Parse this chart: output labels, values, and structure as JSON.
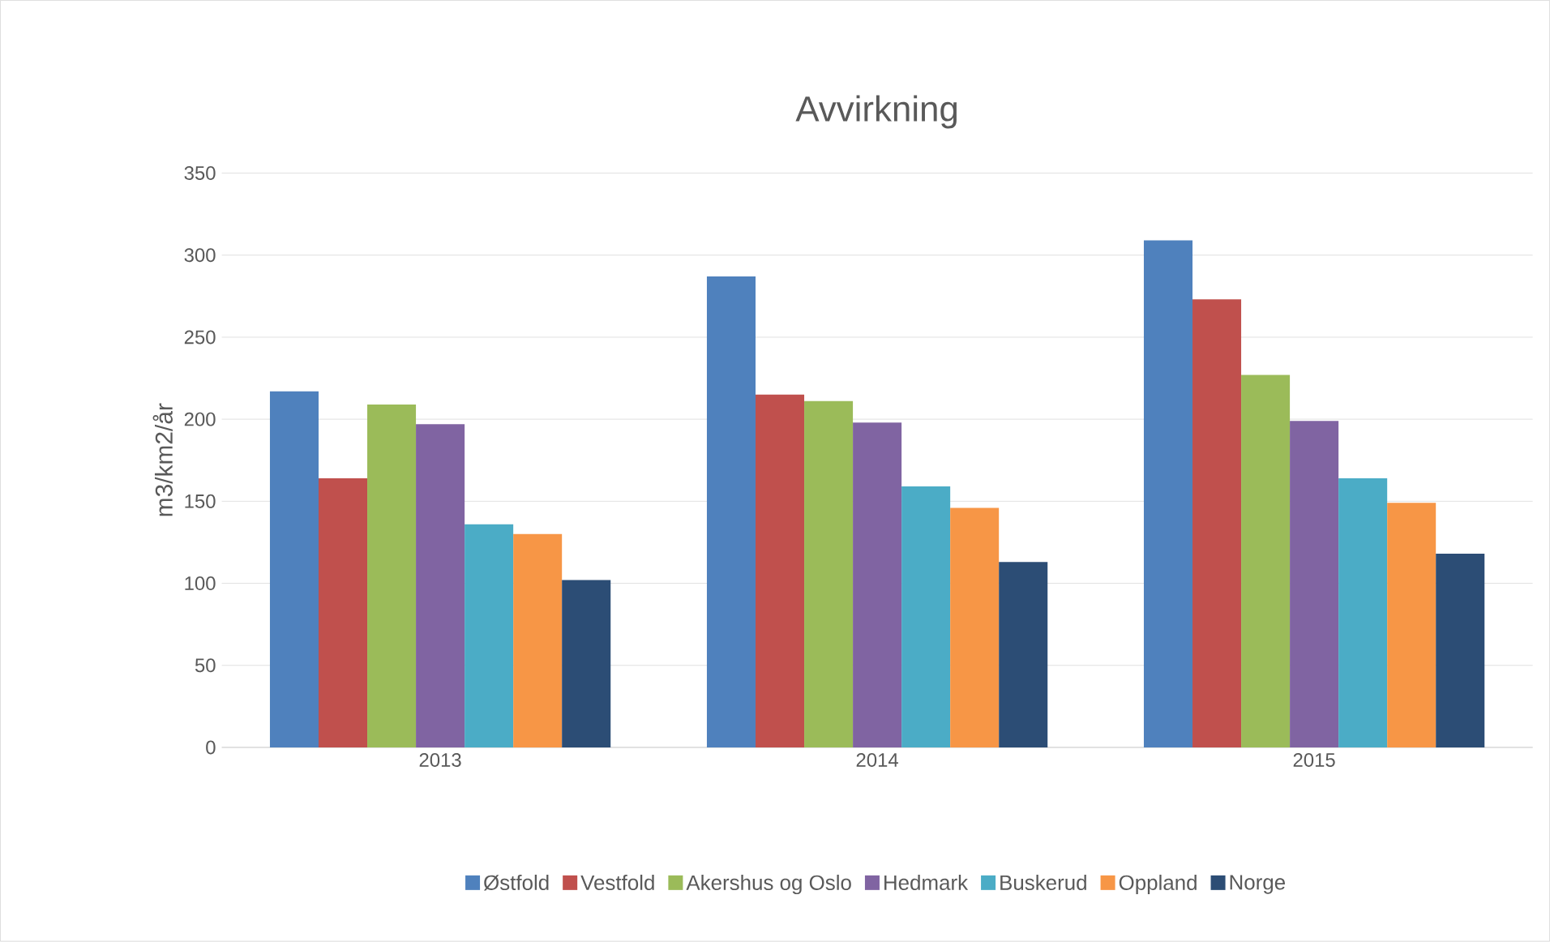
{
  "chart_data": {
    "type": "bar",
    "title": "Avvirkning",
    "ylabel": "m3/km2/år",
    "categories": [
      "2013",
      "2014",
      "2015"
    ],
    "series": [
      {
        "name": "Østfold",
        "color": "#4f81bd",
        "values": [
          217,
          287,
          309
        ]
      },
      {
        "name": "Vestfold",
        "color": "#c0504d",
        "values": [
          164,
          215,
          273
        ]
      },
      {
        "name": "Akershus og Oslo",
        "color": "#9bbb59",
        "values": [
          209,
          211,
          227
        ]
      },
      {
        "name": "Hedmark",
        "color": "#8064a2",
        "values": [
          197,
          198,
          199
        ]
      },
      {
        "name": "Buskerud",
        "color": "#4bacc6",
        "values": [
          136,
          159,
          164
        ]
      },
      {
        "name": "Oppland",
        "color": "#f79646",
        "values": [
          130,
          146,
          149
        ]
      },
      {
        "name": "Norge",
        "color": "#2c4d75",
        "values": [
          102,
          113,
          118
        ]
      }
    ],
    "ylim": [
      0,
      350
    ],
    "yticks": [
      0,
      50,
      100,
      150,
      200,
      250,
      300,
      350
    ],
    "grid": "y",
    "legend": "bottom"
  }
}
